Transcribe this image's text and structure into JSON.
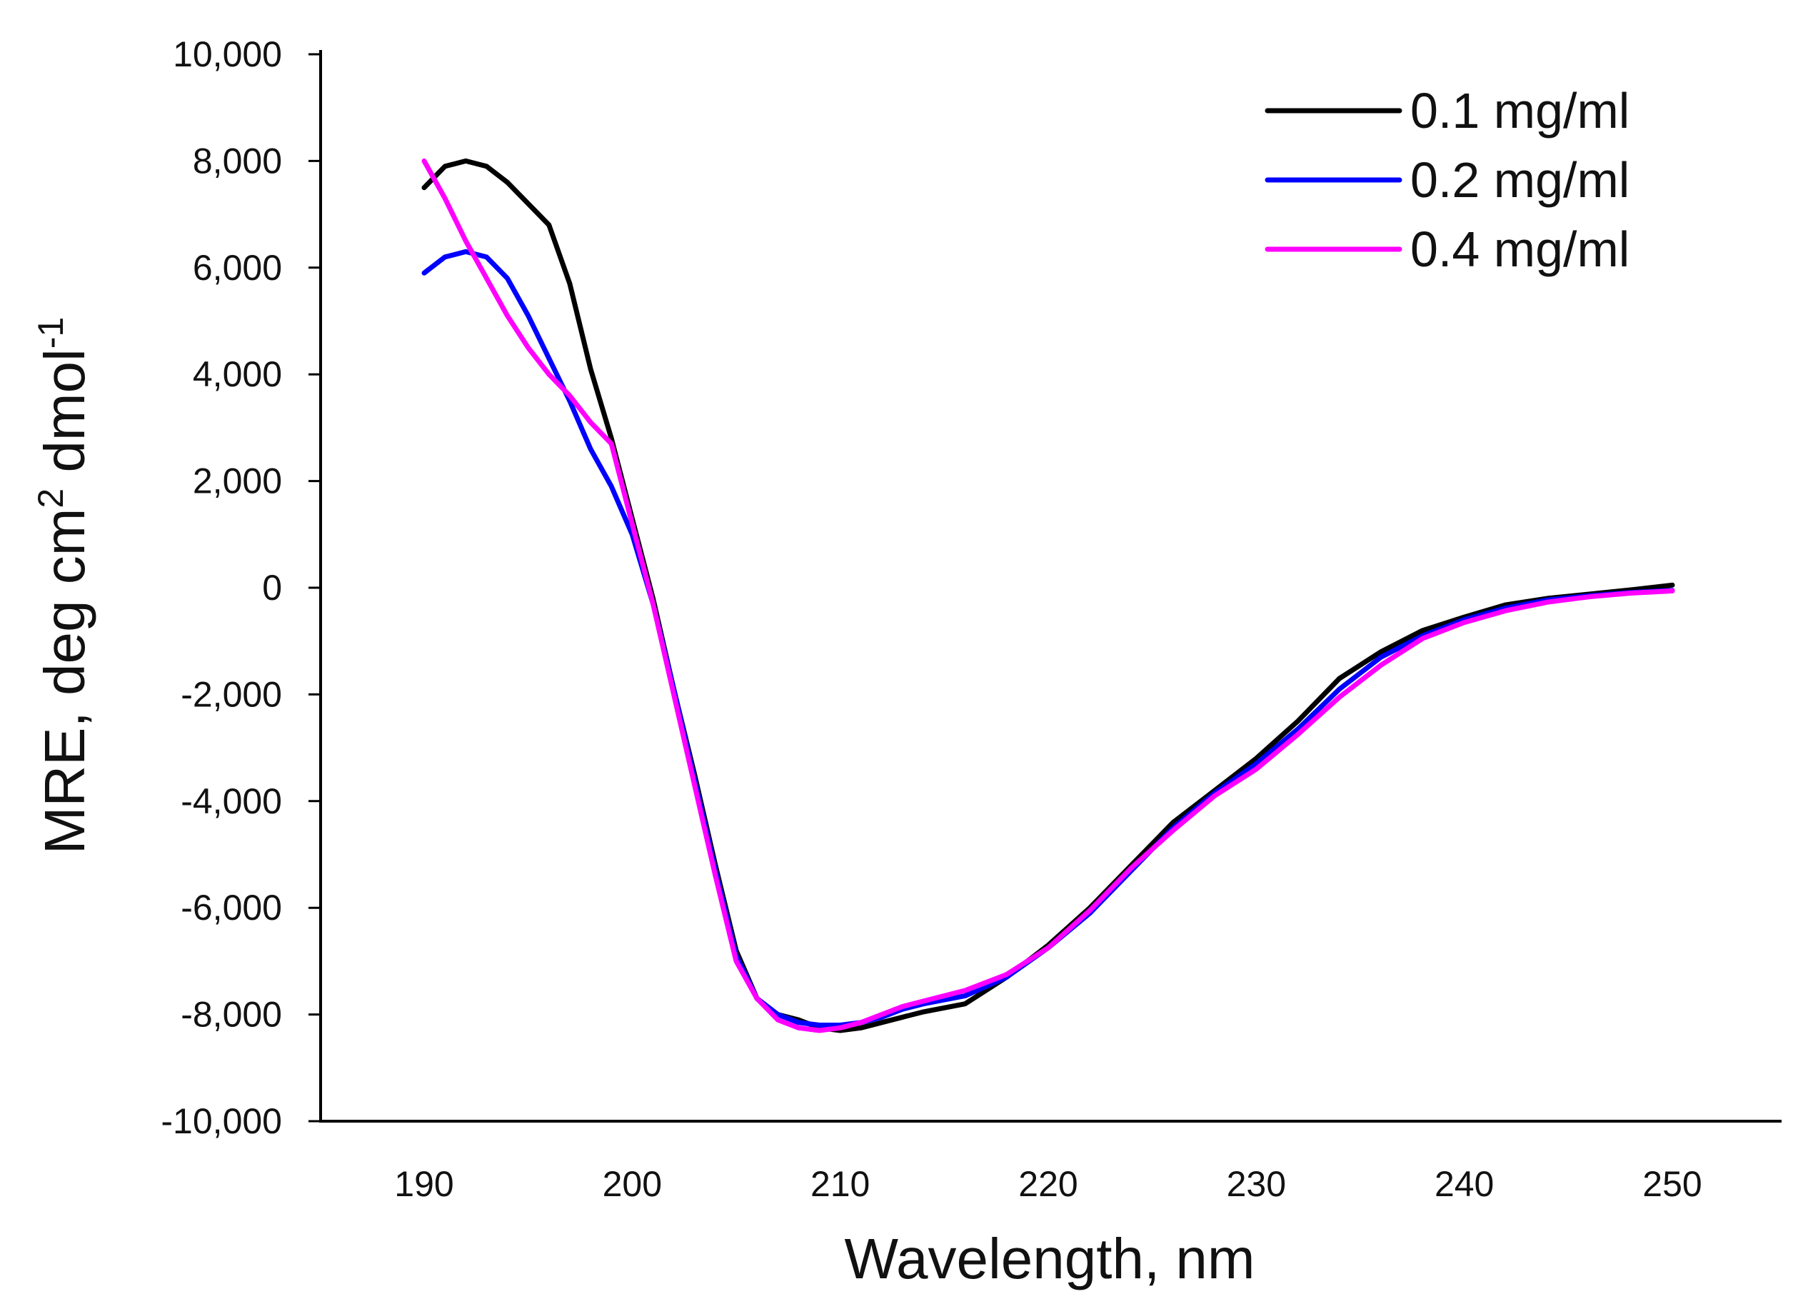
{
  "chart_data": {
    "type": "line",
    "title": "",
    "xlabel": "Wavelength, nm",
    "ylabel": {
      "main": "MRE, deg cm",
      "sup1": "2",
      "mid": " dmol",
      "sup2": "-1"
    },
    "xlim": [
      190,
      250
    ],
    "ylim": [
      -10000,
      10000
    ],
    "x_ticks": [
      190,
      200,
      210,
      220,
      230,
      240,
      250
    ],
    "x_tick_labels": [
      "190",
      "200",
      "210",
      "220",
      "230",
      "240",
      "250"
    ],
    "y_ticks": [
      10000,
      8000,
      6000,
      4000,
      2000,
      0,
      -2000,
      -4000,
      -6000,
      -8000,
      -10000
    ],
    "y_tick_labels": [
      "10,000",
      "8,000",
      "6,000",
      "4,000",
      "2,000",
      "0",
      "-2,000",
      "-4,000",
      "-6,000",
      "-8,000",
      "-10,000"
    ],
    "grid": false,
    "legend_position": "top-right",
    "series": [
      {
        "name": "0.1 mg/ml",
        "color": "#000000",
        "points": [
          [
            190,
            7500
          ],
          [
            191,
            7900
          ],
          [
            192,
            8000
          ],
          [
            193,
            7900
          ],
          [
            194,
            7600
          ],
          [
            195,
            7200
          ],
          [
            196,
            6800
          ],
          [
            197,
            5700
          ],
          [
            198,
            4100
          ],
          [
            199,
            2800
          ],
          [
            200,
            1300
          ],
          [
            201,
            -200
          ],
          [
            202,
            -1900
          ],
          [
            203,
            -3500
          ],
          [
            204,
            -5200
          ],
          [
            205,
            -6800
          ],
          [
            206,
            -7700
          ],
          [
            207,
            -8000
          ],
          [
            208,
            -8100
          ],
          [
            209,
            -8250
          ],
          [
            210,
            -8300
          ],
          [
            211,
            -8250
          ],
          [
            212,
            -8150
          ],
          [
            213,
            -8050
          ],
          [
            214,
            -7950
          ],
          [
            216,
            -7800
          ],
          [
            218,
            -7300
          ],
          [
            220,
            -6700
          ],
          [
            222,
            -6000
          ],
          [
            224,
            -5200
          ],
          [
            226,
            -4400
          ],
          [
            228,
            -3800
          ],
          [
            230,
            -3200
          ],
          [
            232,
            -2500
          ],
          [
            234,
            -1700
          ],
          [
            236,
            -1200
          ],
          [
            238,
            -800
          ],
          [
            240,
            -550
          ],
          [
            242,
            -320
          ],
          [
            244,
            -200
          ],
          [
            246,
            -120
          ],
          [
            248,
            -40
          ],
          [
            250,
            50
          ]
        ]
      },
      {
        "name": "0.2 mg/ml",
        "color": "#0000ff",
        "points": [
          [
            190,
            5900
          ],
          [
            191,
            6200
          ],
          [
            192,
            6300
          ],
          [
            193,
            6200
          ],
          [
            194,
            5800
          ],
          [
            195,
            5100
          ],
          [
            196,
            4300
          ],
          [
            197,
            3500
          ],
          [
            198,
            2600
          ],
          [
            199,
            1900
          ],
          [
            200,
            1000
          ],
          [
            201,
            -300
          ],
          [
            202,
            -1900
          ],
          [
            203,
            -3600
          ],
          [
            204,
            -5300
          ],
          [
            205,
            -6900
          ],
          [
            206,
            -7700
          ],
          [
            207,
            -8000
          ],
          [
            208,
            -8150
          ],
          [
            209,
            -8200
          ],
          [
            210,
            -8200
          ],
          [
            211,
            -8150
          ],
          [
            212,
            -8050
          ],
          [
            213,
            -7900
          ],
          [
            214,
            -7800
          ],
          [
            216,
            -7650
          ],
          [
            218,
            -7300
          ],
          [
            220,
            -6750
          ],
          [
            222,
            -6100
          ],
          [
            224,
            -5300
          ],
          [
            226,
            -4500
          ],
          [
            228,
            -3850
          ],
          [
            230,
            -3300
          ],
          [
            232,
            -2650
          ],
          [
            234,
            -1900
          ],
          [
            236,
            -1300
          ],
          [
            238,
            -900
          ],
          [
            240,
            -600
          ],
          [
            242,
            -380
          ],
          [
            244,
            -230
          ],
          [
            246,
            -150
          ],
          [
            248,
            -90
          ],
          [
            250,
            -50
          ]
        ]
      },
      {
        "name": "0.4 mg/ml",
        "color": "#ff00ff",
        "points": [
          [
            190,
            8000
          ],
          [
            191,
            7300
          ],
          [
            192,
            6500
          ],
          [
            193,
            5800
          ],
          [
            194,
            5100
          ],
          [
            195,
            4500
          ],
          [
            196,
            4000
          ],
          [
            197,
            3600
          ],
          [
            198,
            3100
          ],
          [
            199,
            2700
          ],
          [
            200,
            1200
          ],
          [
            201,
            -300
          ],
          [
            202,
            -2000
          ],
          [
            203,
            -3700
          ],
          [
            204,
            -5400
          ],
          [
            205,
            -7000
          ],
          [
            206,
            -7700
          ],
          [
            207,
            -8100
          ],
          [
            208,
            -8250
          ],
          [
            209,
            -8300
          ],
          [
            210,
            -8250
          ],
          [
            211,
            -8150
          ],
          [
            212,
            -8000
          ],
          [
            213,
            -7850
          ],
          [
            214,
            -7750
          ],
          [
            216,
            -7550
          ],
          [
            218,
            -7250
          ],
          [
            220,
            -6750
          ],
          [
            222,
            -6050
          ],
          [
            224,
            -5250
          ],
          [
            226,
            -4550
          ],
          [
            228,
            -3900
          ],
          [
            230,
            -3400
          ],
          [
            232,
            -2750
          ],
          [
            234,
            -2050
          ],
          [
            236,
            -1450
          ],
          [
            238,
            -950
          ],
          [
            240,
            -650
          ],
          [
            242,
            -430
          ],
          [
            244,
            -270
          ],
          [
            246,
            -170
          ],
          [
            248,
            -100
          ],
          [
            250,
            -60
          ]
        ]
      }
    ]
  }
}
